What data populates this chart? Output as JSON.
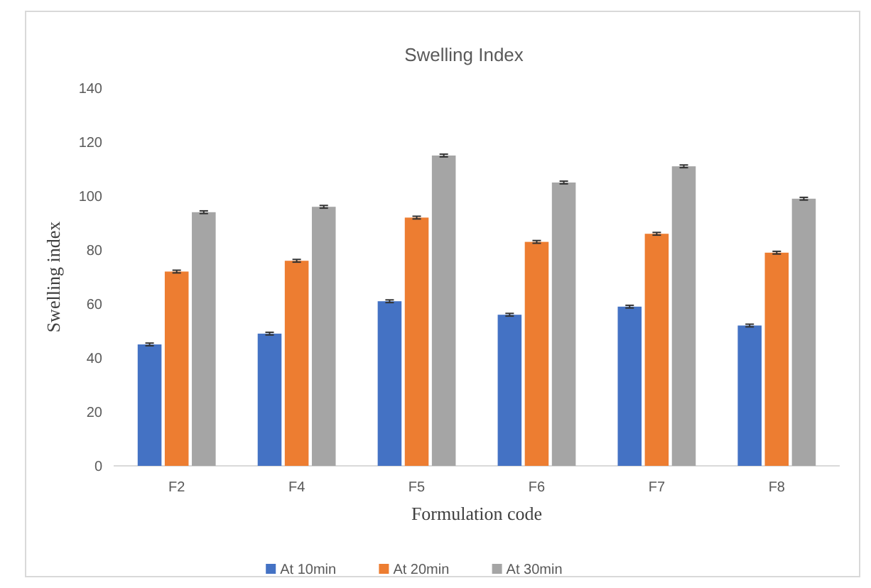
{
  "chart_data": {
    "type": "bar",
    "title": "Swelling Index",
    "xlabel": "Formulation code",
    "ylabel": "Swelling index",
    "categories": [
      "F2",
      "F4",
      "F5",
      "F6",
      "F7",
      "F8"
    ],
    "series": [
      {
        "name": "At 10min",
        "color": "#4472c4",
        "values": [
          45,
          49,
          61,
          56,
          59,
          52
        ],
        "errors": [
          0.5,
          0.5,
          0.5,
          0.5,
          0.5,
          0.5
        ]
      },
      {
        "name": "At 20min",
        "color": "#ed7d31",
        "values": [
          72,
          76,
          92,
          83,
          86,
          79
        ],
        "errors": [
          0.5,
          0.5,
          0.5,
          0.5,
          0.5,
          0.5
        ]
      },
      {
        "name": "At 30min",
        "color": "#a5a5a5",
        "values": [
          94,
          96,
          115,
          105,
          111,
          99
        ],
        "errors": [
          0.5,
          0.5,
          0.5,
          0.5,
          0.5,
          0.5
        ]
      }
    ],
    "ylim": [
      0,
      140
    ],
    "yticks": [
      0,
      20,
      40,
      60,
      80,
      100,
      120,
      140
    ],
    "grid": false,
    "legend": "bottom"
  }
}
